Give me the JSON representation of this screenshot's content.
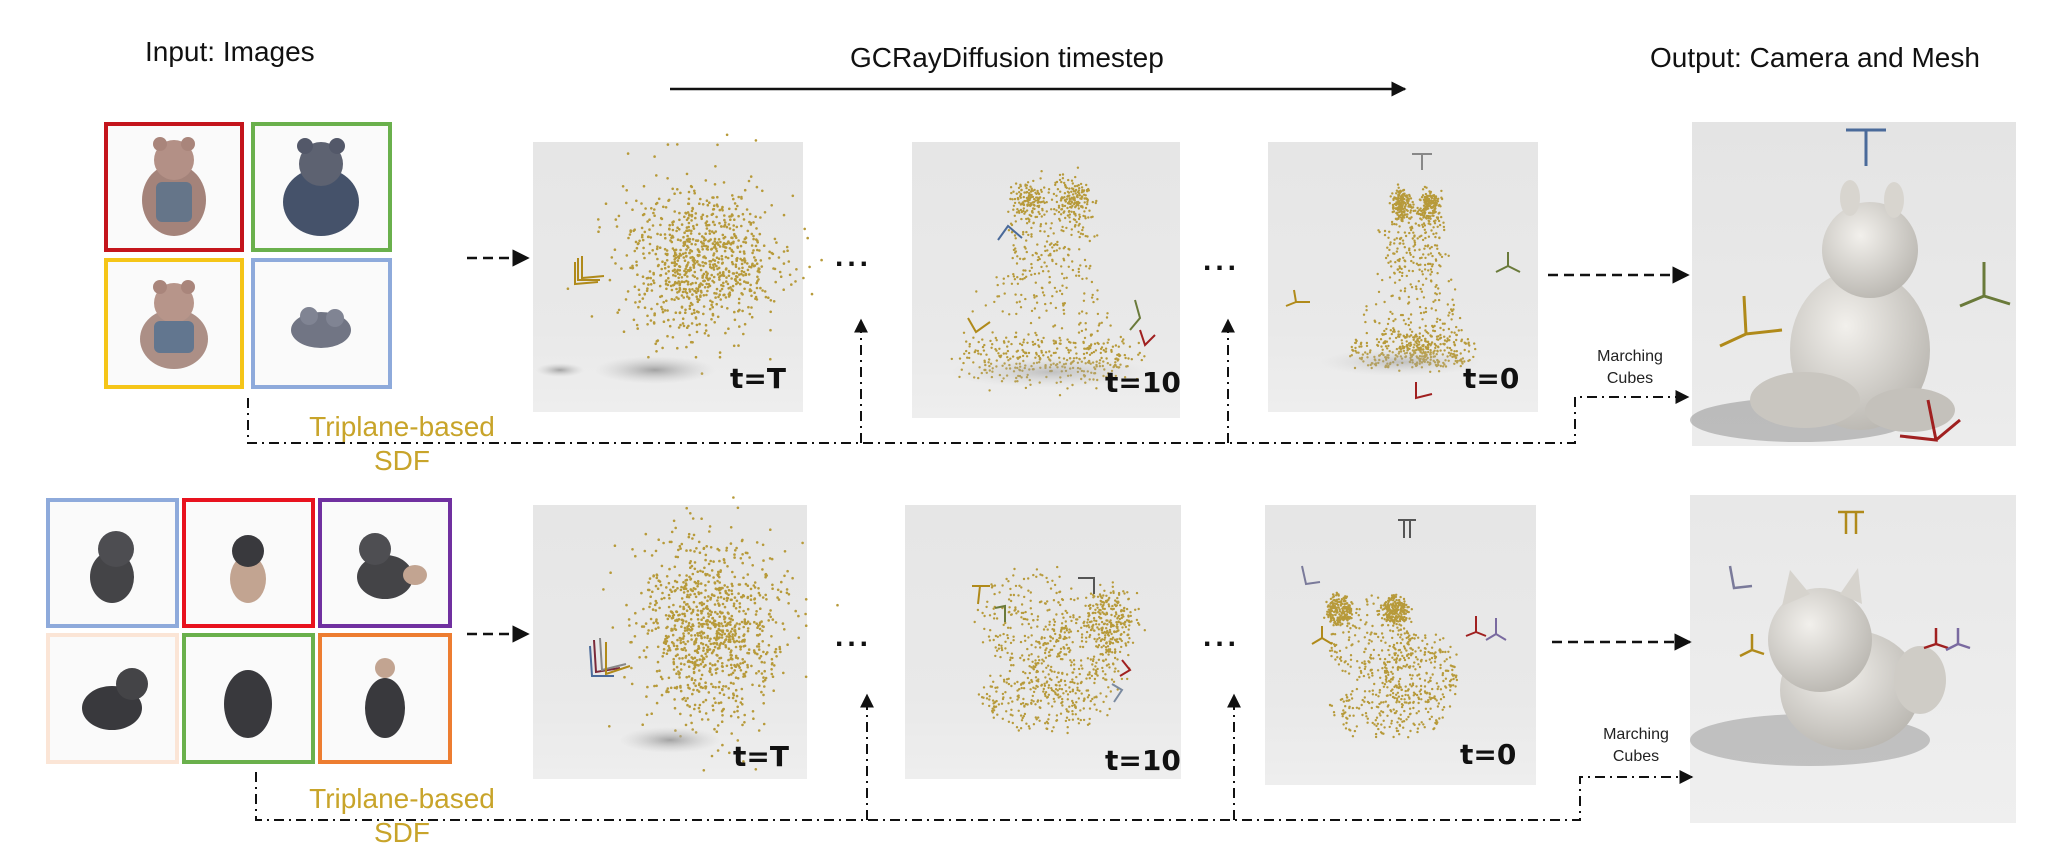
{
  "headings": {
    "input": "Input: Images",
    "timestep": "GCRayDiffusion timestep",
    "output": "Output: Camera and Mesh"
  },
  "rows": [
    {
      "thumb_colors": [
        "#c4151c",
        "#6ab04c",
        "#f5c518",
        "#8eaadb"
      ],
      "steps": [
        "t=T",
        "t=10",
        "t=0"
      ],
      "sdf_line1": "Triplane-based",
      "sdf_line2": "SDF",
      "mc_line1": "Marching",
      "mc_line2": "Cubes",
      "ellipsis": "..."
    },
    {
      "thumb_colors": [
        "#8eaadb",
        "#e8121e",
        "#7030a0",
        "#fbe5d6",
        "#6ab04c",
        "#ed7d31"
      ],
      "steps": [
        "t=T",
        "t=10",
        "t=0"
      ],
      "sdf_line1": "Triplane-based",
      "sdf_line2": "SDF",
      "mc_line1": "Marching",
      "mc_line2": "Cubes",
      "ellipsis": "..."
    }
  ],
  "colors": {
    "points": "#b79a3a",
    "sdf_text": "#c8a42a",
    "cam_blue": "#4a6a9a",
    "cam_gold": "#b08a1a",
    "cam_red": "#a02020",
    "cam_green": "#6a7a3a",
    "cam_gray": "#888888",
    "cam_purple": "#7a6aa0"
  }
}
